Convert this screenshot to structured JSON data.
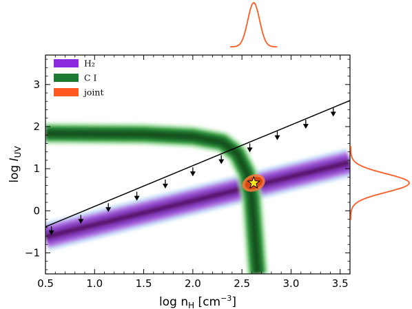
{
  "chart_data": {
    "type": "line",
    "xlabel": "log n_H [cm^-3]",
    "ylabel": "log I_UV",
    "xlim": [
      0.5,
      3.6
    ],
    "ylim": [
      -1.5,
      3.7
    ],
    "xticks": [
      "0.5",
      "1.0",
      "1.5",
      "2.0",
      "2.5",
      "3.0",
      "3.5"
    ],
    "yticks": [
      "−1",
      "0",
      "1",
      "2",
      "3"
    ],
    "legend_position": "top-left",
    "series": [
      {
        "name": "H₂",
        "color": "#8a2be2",
        "x": [
          0.5,
          3.6
        ],
        "y": [
          -0.62,
          1.15
        ]
      },
      {
        "name": "C I",
        "color": "#1e7a32",
        "x": [
          0.5,
          1.5,
          2.0,
          2.3,
          2.45,
          2.55,
          2.6,
          2.65,
          2.66
        ],
        "y": [
          1.84,
          1.82,
          1.76,
          1.63,
          1.36,
          0.9,
          0.3,
          -1.2,
          -1.5
        ]
      },
      {
        "name": "joint",
        "color": "#ff5a1f",
        "x": [
          2.62
        ],
        "y": [
          0.66
        ]
      }
    ],
    "upper_limit_line": {
      "x": [
        0.5,
        3.6
      ],
      "y": [
        -0.38,
        2.62
      ]
    },
    "upper_limits": {
      "x": [
        0.56,
        0.86,
        1.14,
        1.43,
        1.72,
        2.0,
        2.29,
        2.58,
        2.86,
        3.15,
        3.43
      ],
      "y": [
        -0.45,
        -0.18,
        0.1,
        0.37,
        0.66,
        0.95,
        1.24,
        1.52,
        1.81,
        2.08,
        2.37
      ]
    },
    "best_fit": {
      "x": 2.62,
      "y": 0.66
    },
    "marginal_x": {
      "center": 2.62,
      "width": 0.06
    },
    "marginal_y": {
      "center": 0.66,
      "width": 0.22
    }
  }
}
